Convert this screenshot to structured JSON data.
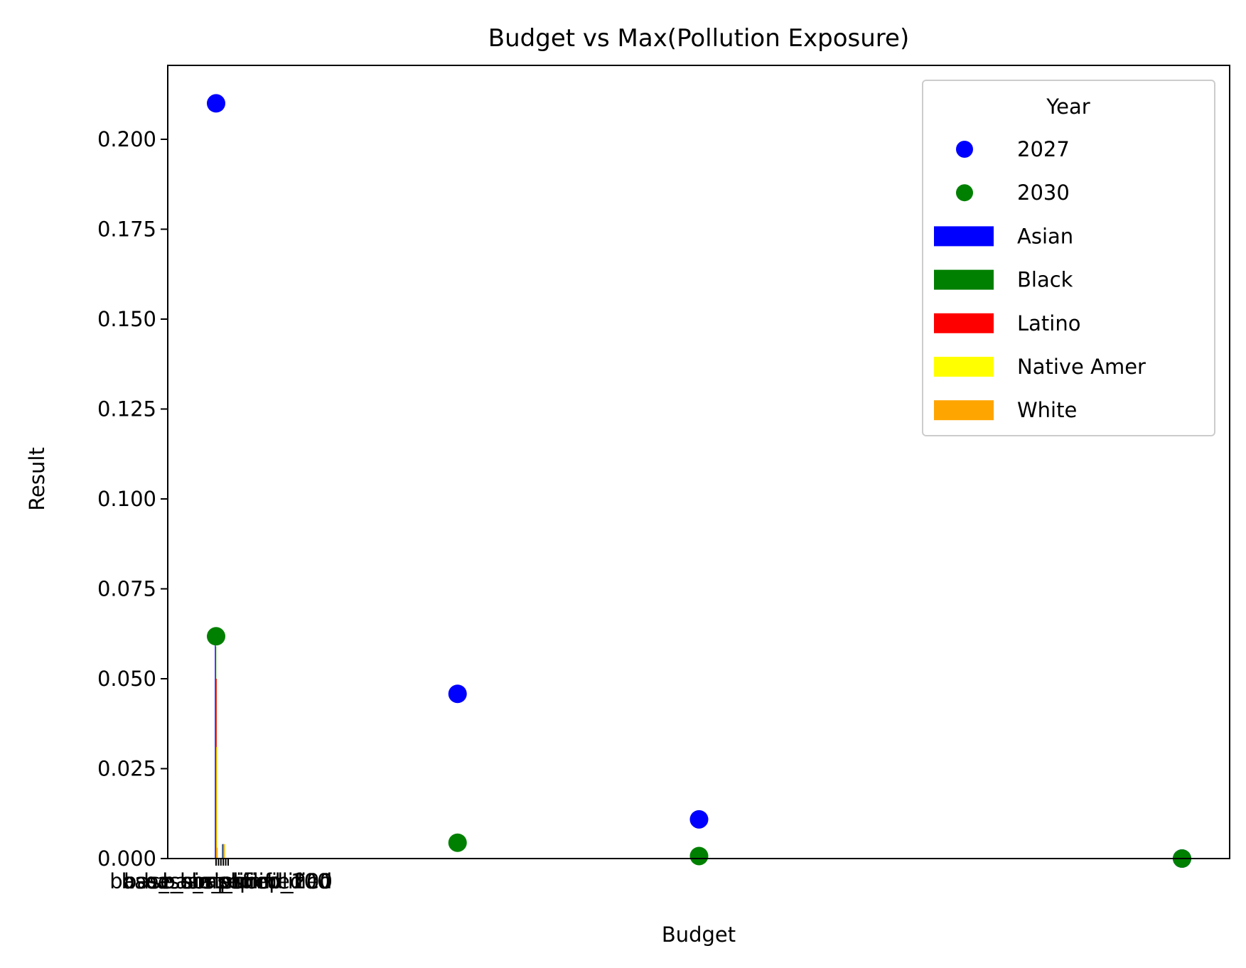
{
  "chart_data": {
    "type": "scatter",
    "title": "Budget vs Max(Pollution Exposure)",
    "xlabel": "Budget",
    "ylabel": "Result",
    "ylim": [
      0,
      0.22
    ],
    "yticks": [
      "0.000",
      "0.025",
      "0.050",
      "0.075",
      "0.100",
      "0.125",
      "0.150",
      "0.175",
      "0.200"
    ],
    "xticks": [
      {
        "label": "base",
        "x": 0
      },
      {
        "label": "base_short",
        "x": 1
      },
      {
        "label": "base_short_simplified",
        "x": 2
      },
      {
        "label": "base_simplified",
        "x": 3
      },
      {
        "label": "base_simplified_100",
        "x": 4
      },
      {
        "label": "base_simplified_200",
        "x": 5
      }
    ],
    "xtick_labels_overlap": true,
    "legend": {
      "title": "Year",
      "position": "upper right",
      "entries": [
        {
          "label": "2027",
          "kind": "marker",
          "color": "#0000ff"
        },
        {
          "label": "2030",
          "kind": "marker",
          "color": "#008000"
        },
        {
          "label": "Asian",
          "kind": "patch",
          "color": "#0000ff"
        },
        {
          "label": "Black",
          "kind": "patch",
          "color": "#008000"
        },
        {
          "label": "Latino",
          "kind": "patch",
          "color": "#ff0000"
        },
        {
          "label": "Native Amer",
          "kind": "patch",
          "color": "#ffff00"
        },
        {
          "label": "White",
          "kind": "patch",
          "color": "#ffa500"
        }
      ]
    },
    "scatter_series": [
      {
        "name": "2027",
        "color": "#0000ff",
        "x": [
          0,
          100,
          200,
          400
        ],
        "y": [
          0.21,
          0.0458,
          0.0109,
          0.0
        ]
      },
      {
        "name": "2030",
        "color": "#008000",
        "x": [
          0,
          100,
          200,
          400
        ],
        "y": [
          0.0618,
          0.0044,
          0.0007,
          0.0
        ]
      }
    ],
    "bar_series": [
      {
        "name": "Asian",
        "color": "#0000ff",
        "values": [
          0.06,
          0.0,
          0.0,
          0.004,
          0.0,
          0.0
        ]
      },
      {
        "name": "Black",
        "color": "#008000",
        "values": [
          0.059,
          0.0,
          0.0,
          0.004,
          0.0,
          0.0
        ]
      },
      {
        "name": "Latino",
        "color": "#ff0000",
        "values": [
          0.05,
          0.0,
          0.0,
          0.004,
          0.0,
          0.0
        ]
      },
      {
        "name": "Native Amer",
        "color": "#ffff00",
        "values": [
          0.031,
          0.0,
          0.0,
          0.004,
          0.0,
          0.0
        ]
      },
      {
        "name": "White",
        "color": "#ffa500",
        "values": [
          0.003,
          0.0,
          0.0,
          0.004,
          0.0,
          0.0
        ]
      }
    ]
  }
}
